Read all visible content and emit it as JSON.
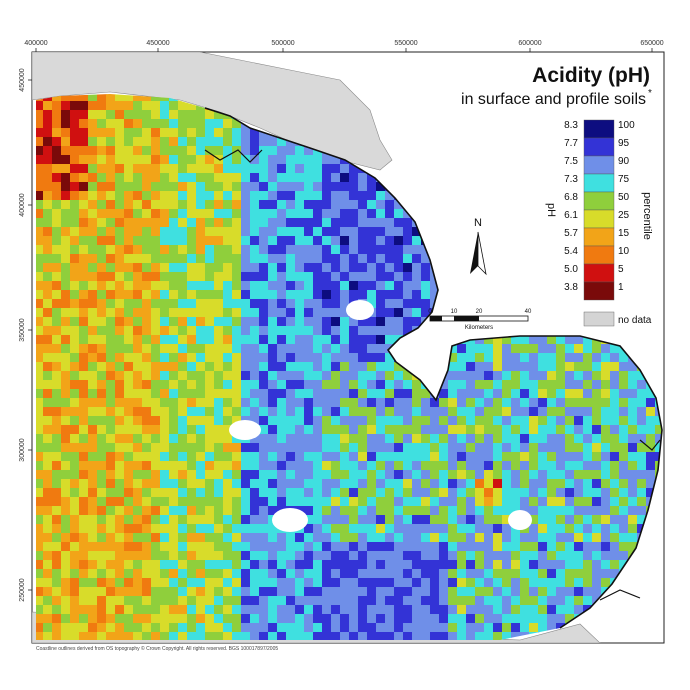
{
  "map": {
    "title": "Acidity (pH)",
    "subtitle": "in surface and profile soils",
    "subtitle_mark": "*",
    "x_ticks": [
      "400000",
      "450000",
      "500000",
      "550000",
      "600000",
      "650000"
    ],
    "y_ticks": [
      "450000",
      "400000",
      "350000",
      "300000",
      "250000"
    ],
    "north_label": "N",
    "scale": {
      "ticks": [
        "0",
        "10",
        "20",
        "40"
      ],
      "unit": "Kilometers"
    },
    "footer": "Coastline outlines derived from OS topography © Crown Copyright. All rights reserved. BGS 100017897/2005"
  },
  "legend": {
    "left_axis_label": "pH",
    "right_axis_label": "percentile",
    "items": [
      {
        "ph": "8.3",
        "percentile": "100",
        "color": "#0d0d80"
      },
      {
        "ph": "7.7",
        "percentile": "95",
        "color": "#3333d6"
      },
      {
        "ph": "7.5",
        "percentile": "90",
        "color": "#6f8fe8"
      },
      {
        "ph": "7.3",
        "percentile": "75",
        "color": "#3fe0e0"
      },
      {
        "ph": "6.8",
        "percentile": "50",
        "color": "#8fcf3c"
      },
      {
        "ph": "6.1",
        "percentile": "25",
        "color": "#d8dc2a"
      },
      {
        "ph": "5.7",
        "percentile": "15",
        "color": "#f2a418"
      },
      {
        "ph": "5.4",
        "percentile": "10",
        "color": "#f07a10"
      },
      {
        "ph": "5.0",
        "percentile": "5",
        "color": "#d01010"
      },
      {
        "ph": "3.8",
        "percentile": "1",
        "color": "#7a0a0a"
      }
    ],
    "no_data": {
      "label": "no data",
      "color": "#d4d4d4"
    }
  }
}
